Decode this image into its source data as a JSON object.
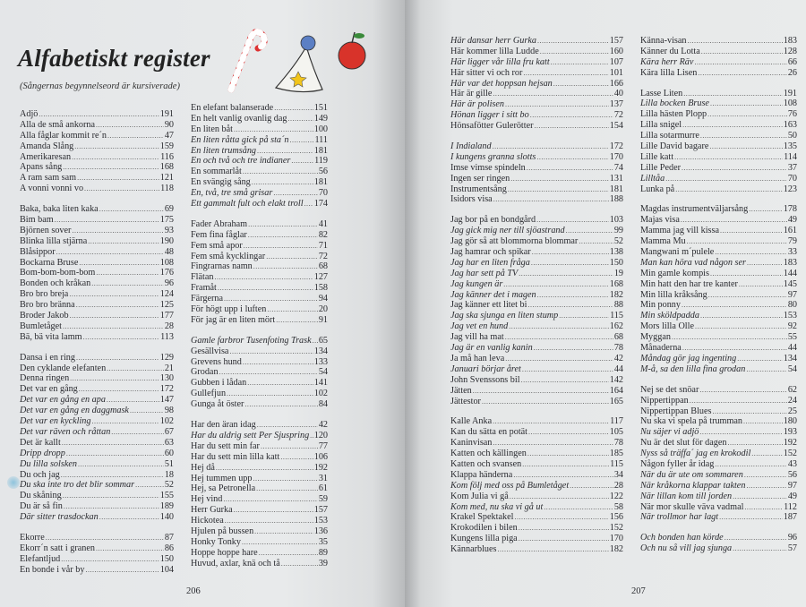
{
  "header": {
    "title": "Alfabetiskt register",
    "subtitle": "(Sångernas begynnelseord är kursiverade)"
  },
  "page_numbers": [
    "206",
    "207"
  ],
  "pages": [
    {
      "columns": [
        {
          "groups": [
            {
              "entries": [
                [
                  "Adjö",
                  "191"
                ],
                [
                  "Alla de små ankorna",
                  "90"
                ],
                [
                  "Alla fåglar kommit re´n",
                  "47"
                ],
                [
                  "Amanda Slång",
                  "159"
                ],
                [
                  "Amerikaresan",
                  "116"
                ],
                [
                  "Apans sång",
                  "168"
                ],
                [
                  "A ram sam sam",
                  "121"
                ],
                [
                  "A vonni vonni vo",
                  "118"
                ]
              ]
            },
            {
              "entries": [
                [
                  "Baka, baka liten kaka",
                  "69"
                ],
                [
                  "Bim bam",
                  "175"
                ],
                [
                  "Björnen sover",
                  "93"
                ],
                [
                  "Blinka lilla stjärna",
                  "190"
                ],
                [
                  "Blåsippor",
                  "48"
                ],
                [
                  "Bockarna Bruse",
                  "108"
                ],
                [
                  "Bom-bom-bom-bom",
                  "176"
                ],
                [
                  "Bonden och kråkan",
                  "96"
                ],
                [
                  "Bro bro breja",
                  "124"
                ],
                [
                  "Bro bro bränna",
                  "125"
                ],
                [
                  "Broder Jakob",
                  "177"
                ],
                [
                  "Bumletåget",
                  "28"
                ],
                [
                  "Bä, bä vita lamm",
                  "113"
                ]
              ]
            },
            {
              "entries": [
                [
                  "Dansa i en ring",
                  "129"
                ],
                [
                  "Den cyklande elefanten",
                  "21"
                ],
                [
                  "Denna ringen",
                  "130"
                ],
                [
                  "Det var en gång",
                  "172"
                ],
                [
                  "Det var en gång en apa",
                  "147",
                  1
                ],
                [
                  "Det var en gång en daggmask",
                  "98",
                  1
                ],
                [
                  "Det var en kyckling",
                  "102",
                  1
                ],
                [
                  "Det var räven och råttan",
                  "67",
                  1
                ],
                [
                  "Det är kallt",
                  "63"
                ],
                [
                  "Dripp dropp",
                  "60",
                  1
                ],
                [
                  "Du lilla solsken",
                  "51",
                  1
                ],
                [
                  "Du och jag",
                  "18"
                ],
                [
                  "Du ska inte tro det blir sommar",
                  "52",
                  1
                ],
                [
                  "Du skåning",
                  "155"
                ],
                [
                  "Du är så fin",
                  "189"
                ],
                [
                  "Där sitter trasdockan",
                  "140",
                  1
                ]
              ]
            },
            {
              "entries": [
                [
                  "Ekorre",
                  "87"
                ],
                [
                  "Ekorr´n satt i granen",
                  "86"
                ],
                [
                  "Elefantljud",
                  "150"
                ],
                [
                  "En bonde i vår by",
                  "104"
                ]
              ]
            }
          ]
        },
        {
          "groups": [
            {
              "entries": [
                [
                  "En elefant balanserade",
                  "151"
                ],
                [
                  "En helt vanlig ovanlig dag",
                  "149"
                ],
                [
                  "En liten båt",
                  "100"
                ],
                [
                  "En liten råtta gick på sta´n",
                  "111",
                  1
                ],
                [
                  "En liten trumsång",
                  "181",
                  1
                ],
                [
                  "En och två och tre indianer",
                  "119",
                  1
                ],
                [
                  "En sommarlåt",
                  "56"
                ],
                [
                  "En svängig sång",
                  "181"
                ],
                [
                  "En, två, tre små grisar",
                  "70",
                  1
                ],
                [
                  "Ett gammalt fult och elakt troll",
                  "174",
                  1
                ]
              ]
            },
            {
              "entries": [
                [
                  "Fader Abraham",
                  "41"
                ],
                [
                  "Fem fina fåglar",
                  "82"
                ],
                [
                  "Fem små apor",
                  "71"
                ],
                [
                  "Fem små kycklingar",
                  "72"
                ],
                [
                  "Fingrarnas namn",
                  "68"
                ],
                [
                  "Flätan",
                  "127"
                ],
                [
                  "Framåt",
                  "158"
                ],
                [
                  "Färgerna",
                  "94"
                ],
                [
                  "För högt upp i luften",
                  "20"
                ],
                [
                  "För jag är en liten mört",
                  "91"
                ]
              ]
            },
            {
              "entries": [
                [
                  "Gamle farbror Tusenfoting Trask",
                  "65",
                  1
                ],
                [
                  "Gesällvisa",
                  "134"
                ],
                [
                  "Grevens hund",
                  "133"
                ],
                [
                  "Grodan",
                  "54"
                ],
                [
                  "Gubben i lådan",
                  "141"
                ],
                [
                  "Gullefjun",
                  "102"
                ],
                [
                  "Gunga åt öster",
                  "84"
                ]
              ]
            },
            {
              "entries": [
                [
                  "Har den äran idag",
                  "42"
                ],
                [
                  "Har du aldrig sett Per Sjuspring",
                  "120",
                  1
                ],
                [
                  "Har du sett min far",
                  "77"
                ],
                [
                  "Har du sett min lilla katt",
                  "106"
                ],
                [
                  "Hej då",
                  "192"
                ],
                [
                  "Hej tummen upp",
                  "31"
                ],
                [
                  "Hej, sa Petronella",
                  "61"
                ],
                [
                  "Hej vind",
                  "59"
                ],
                [
                  "Herr Gurka",
                  "157"
                ],
                [
                  "Hickotea",
                  "153"
                ],
                [
                  "Hjulen på bussen",
                  "136"
                ],
                [
                  "Honky Tonky",
                  "35"
                ],
                [
                  "Hoppe hoppe hare",
                  "89"
                ],
                [
                  "Huvud, axlar, knä och tå",
                  "39"
                ]
              ]
            }
          ]
        }
      ]
    },
    {
      "columns": [
        {
          "groups": [
            {
              "entries": [
                [
                  "Här dansar herr Gurka",
                  "157",
                  1
                ],
                [
                  "Här kommer lilla Ludde",
                  "160"
                ],
                [
                  "Här ligger vår lilla fru katt",
                  "107",
                  1
                ],
                [
                  "Här sitter vi och ror",
                  "101"
                ],
                [
                  "Här var det hoppsan hejsan",
                  "166",
                  1
                ],
                [
                  "Här är gille",
                  "40"
                ],
                [
                  "Här är polisen",
                  "137",
                  1
                ],
                [
                  "Hönan ligger i sitt bo",
                  "72",
                  1
                ],
                [
                  "Hönsafötter Gulerötter",
                  "154"
                ]
              ]
            },
            {
              "entries": [
                [
                  "I Indialand",
                  "172",
                  1
                ],
                [
                  "I kungens granna slotts",
                  "170",
                  1
                ],
                [
                  "Imse vimse spindeln",
                  "74"
                ],
                [
                  "Ingen ser ringen",
                  "131"
                ],
                [
                  "Instrumentsång",
                  "181"
                ],
                [
                  "Isidors visa",
                  "188"
                ]
              ]
            },
            {
              "entries": [
                [
                  "Jag bor på en bondgård",
                  "103"
                ],
                [
                  "Jag gick mig ner till sjöastrand",
                  "99",
                  1
                ],
                [
                  "Jag gör så att blommorna blommar",
                  "52"
                ],
                [
                  "Jag hamrar och spikar",
                  "138"
                ],
                [
                  "Jag har en liten fråga",
                  "150",
                  1
                ],
                [
                  "Jag har sett på TV",
                  "19",
                  1
                ],
                [
                  "Jag kungen är",
                  "168",
                  1
                ],
                [
                  "Jag känner det i magen",
                  "182",
                  1
                ],
                [
                  "Jag känner ett litet bi",
                  "88"
                ],
                [
                  "Jag ska sjunga en liten stump",
                  "115",
                  1
                ],
                [
                  "Jag vet en hund",
                  "162",
                  1
                ],
                [
                  "Jag vill ha mat",
                  "68"
                ],
                [
                  "Jag är en vanlig kanin",
                  "78",
                  1
                ],
                [
                  "Ja må han leva",
                  "42"
                ],
                [
                  "Januari börjar året",
                  "44",
                  1
                ],
                [
                  "John Svenssons bil",
                  "142"
                ],
                [
                  "Jätten",
                  "164"
                ],
                [
                  "Jättestor",
                  "165"
                ]
              ]
            },
            {
              "entries": [
                [
                  "Kalle Anka",
                  "117"
                ],
                [
                  "Kan du sätta en potät",
                  "105"
                ],
                [
                  "Kaninvisan",
                  "78"
                ],
                [
                  "Katten och källingen",
                  "185"
                ],
                [
                  "Katten och svansen",
                  "115"
                ],
                [
                  "Klappa händerna",
                  "34"
                ],
                [
                  "Kom följ med oss på Bumletåget",
                  "28",
                  1
                ],
                [
                  "Kom Julia vi gå",
                  "122"
                ],
                [
                  "Kom med, nu ska vi gå ut",
                  "58",
                  1
                ],
                [
                  "Krakel Spektakel",
                  "156"
                ],
                [
                  "Krokodilen i bilen",
                  "152"
                ],
                [
                  "Kungens lilla piga",
                  "170"
                ],
                [
                  "Kännarblues",
                  "182"
                ]
              ]
            }
          ]
        },
        {
          "groups": [
            {
              "entries": [
                [
                  "Känna-visan",
                  "183"
                ],
                [
                  "Känner du Lotta",
                  "128"
                ],
                [
                  "Kära herr Räv",
                  "66",
                  1
                ],
                [
                  "Kära lilla Lisen",
                  "26"
                ]
              ]
            },
            {
              "entries": [
                [
                  "Lasse Liten",
                  "191"
                ],
                [
                  "Lilla bocken Bruse",
                  "108",
                  1
                ],
                [
                  "Lilla hästen Plopp",
                  "76"
                ],
                [
                  "Lilla snigel",
                  "163"
                ],
                [
                  "Lilla sotarmurre",
                  "50"
                ],
                [
                  "Lille David bagare",
                  "135"
                ],
                [
                  "Lille katt",
                  "114"
                ],
                [
                  "Lille Peder",
                  "37"
                ],
                [
                  "Lilltåa",
                  "70",
                  1
                ],
                [
                  "Lunka på",
                  "123"
                ]
              ]
            },
            {
              "entries": [
                [
                  "Magdas instrumentväljarsång",
                  "178"
                ],
                [
                  "Majas visa",
                  "49"
                ],
                [
                  "Mamma jag vill kissa",
                  "161"
                ],
                [
                  "Mamma Mu",
                  "79"
                ],
                [
                  "Mangwani m´pulele",
                  "33"
                ],
                [
                  "Man kan höra vad någon ser",
                  "183",
                  1
                ],
                [
                  "Min gamle kompis",
                  "144"
                ],
                [
                  "Min hatt den har tre kanter",
                  "145"
                ],
                [
                  "Min lilla kråksång",
                  "97"
                ],
                [
                  "Min ponny",
                  "80"
                ],
                [
                  "Min sköldpadda",
                  "153",
                  1
                ],
                [
                  "Mors lilla Olle",
                  "92"
                ],
                [
                  "Myggan",
                  "55"
                ],
                [
                  "Månaderna",
                  "44"
                ],
                [
                  "Måndag gör jag ingenting",
                  "134",
                  1
                ],
                [
                  "M-å, sa den lilla fina grodan",
                  "54",
                  1
                ]
              ]
            },
            {
              "entries": [
                [
                  "Nej se det snöar",
                  "62"
                ],
                [
                  "Nippertippan",
                  "24"
                ],
                [
                  "Nippertippan Blues",
                  "25"
                ],
                [
                  "Nu ska vi spela på trumman",
                  "180"
                ],
                [
                  "Nu säjer vi adjö",
                  "193",
                  1
                ],
                [
                  "Nu är det slut för dagen",
                  "192"
                ],
                [
                  "Nyss så träffa´ jag en krokodil",
                  "152",
                  1
                ],
                [
                  "Någon fyller år idag",
                  "43"
                ],
                [
                  "När du är ute om sommaren",
                  "56",
                  1
                ],
                [
                  "När kråkorna klappar takten",
                  "97",
                  1
                ],
                [
                  "När lillan kom till jorden",
                  "49",
                  1
                ],
                [
                  "När mor skulle väva vadmal",
                  "112"
                ],
                [
                  "När trollmor har lagt",
                  "187",
                  1
                ]
              ]
            },
            {
              "entries": [
                [
                  "Och bonden han körde",
                  "96",
                  1
                ],
                [
                  "Och nu så vill jag sjunga",
                  "57",
                  1
                ]
              ]
            }
          ]
        }
      ]
    }
  ]
}
